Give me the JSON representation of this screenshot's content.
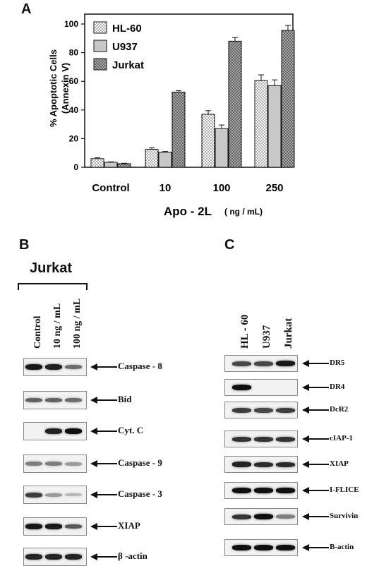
{
  "panels": {
    "a": "A",
    "b": "B",
    "c": "C"
  },
  "chart_data": {
    "type": "bar",
    "ylabel_line1": "% Apoptotic Cells",
    "ylabel_line2": "(Annexin V)",
    "xlabel": "Apo - 2L",
    "xlabel_unit": "( ng / mL)",
    "categories": [
      "Control",
      "10",
      "100",
      "250"
    ],
    "yticks": [
      "0",
      "20",
      "40",
      "60",
      "80",
      "100"
    ],
    "ylim": [
      0,
      100
    ],
    "legend_position": "top-left",
    "series": [
      {
        "name": "HL-60",
        "values": [
          6,
          12.5,
          37,
          60.5
        ],
        "errors": [
          0.6,
          1,
          2.5,
          4
        ],
        "fill": "dots"
      },
      {
        "name": "U937",
        "values": [
          3.5,
          10.5,
          27,
          57
        ],
        "errors": [
          0.3,
          0.5,
          2.5,
          4
        ],
        "fill": "#c8c8c8"
      },
      {
        "name": "Jurkat",
        "values": [
          2.5,
          52.5,
          88,
          95.5
        ],
        "errors": [
          0.3,
          1,
          2.5,
          3.5
        ],
        "fill": "cross"
      }
    ]
  },
  "panel_b": {
    "cell_line": "Jurkat",
    "lanes": [
      "Control",
      "10  ng / mL",
      "100 ng / mL"
    ],
    "blots": [
      {
        "label": "Caspase - 8",
        "bands": [
          0.95,
          0.9,
          0.5
        ]
      },
      {
        "label": "Bid",
        "bands": [
          0.55,
          0.55,
          0.5
        ]
      },
      {
        "label": "Cyt. C",
        "bands": [
          0,
          0.9,
          1.0
        ]
      },
      {
        "label": "Caspase - 9",
        "bands": [
          0.4,
          0.4,
          0.25
        ]
      },
      {
        "label": "Caspase - 3",
        "bands": [
          0.75,
          0.25,
          0.1
        ]
      },
      {
        "label": "XIAP",
        "bands": [
          0.95,
          0.95,
          0.6
        ]
      },
      {
        "label": "β  -actin",
        "bands": [
          0.9,
          0.9,
          0.9
        ]
      }
    ]
  },
  "panel_c": {
    "lanes": [
      "HL - 60",
      "U937",
      "Jurkat"
    ],
    "blots": [
      {
        "label": "DR5",
        "bands": [
          0.7,
          0.7,
          0.95
        ]
      },
      {
        "label": "DR4",
        "bands": [
          1.0,
          0,
          0
        ]
      },
      {
        "label": "DcR2",
        "bands": [
          0.75,
          0.7,
          0.75
        ]
      },
      {
        "label": "cIAP-1",
        "bands": [
          0.8,
          0.8,
          0.8
        ]
      },
      {
        "label": "XIAP",
        "bands": [
          0.9,
          0.85,
          0.85
        ]
      },
      {
        "label": "I-FLICE",
        "bands": [
          1.0,
          1.0,
          1.0
        ]
      },
      {
        "label": "Survivin",
        "bands": [
          0.8,
          1.0,
          0.4
        ]
      },
      {
        "label": "B-actin",
        "bands": [
          1.0,
          1.0,
          1.0
        ]
      }
    ]
  }
}
